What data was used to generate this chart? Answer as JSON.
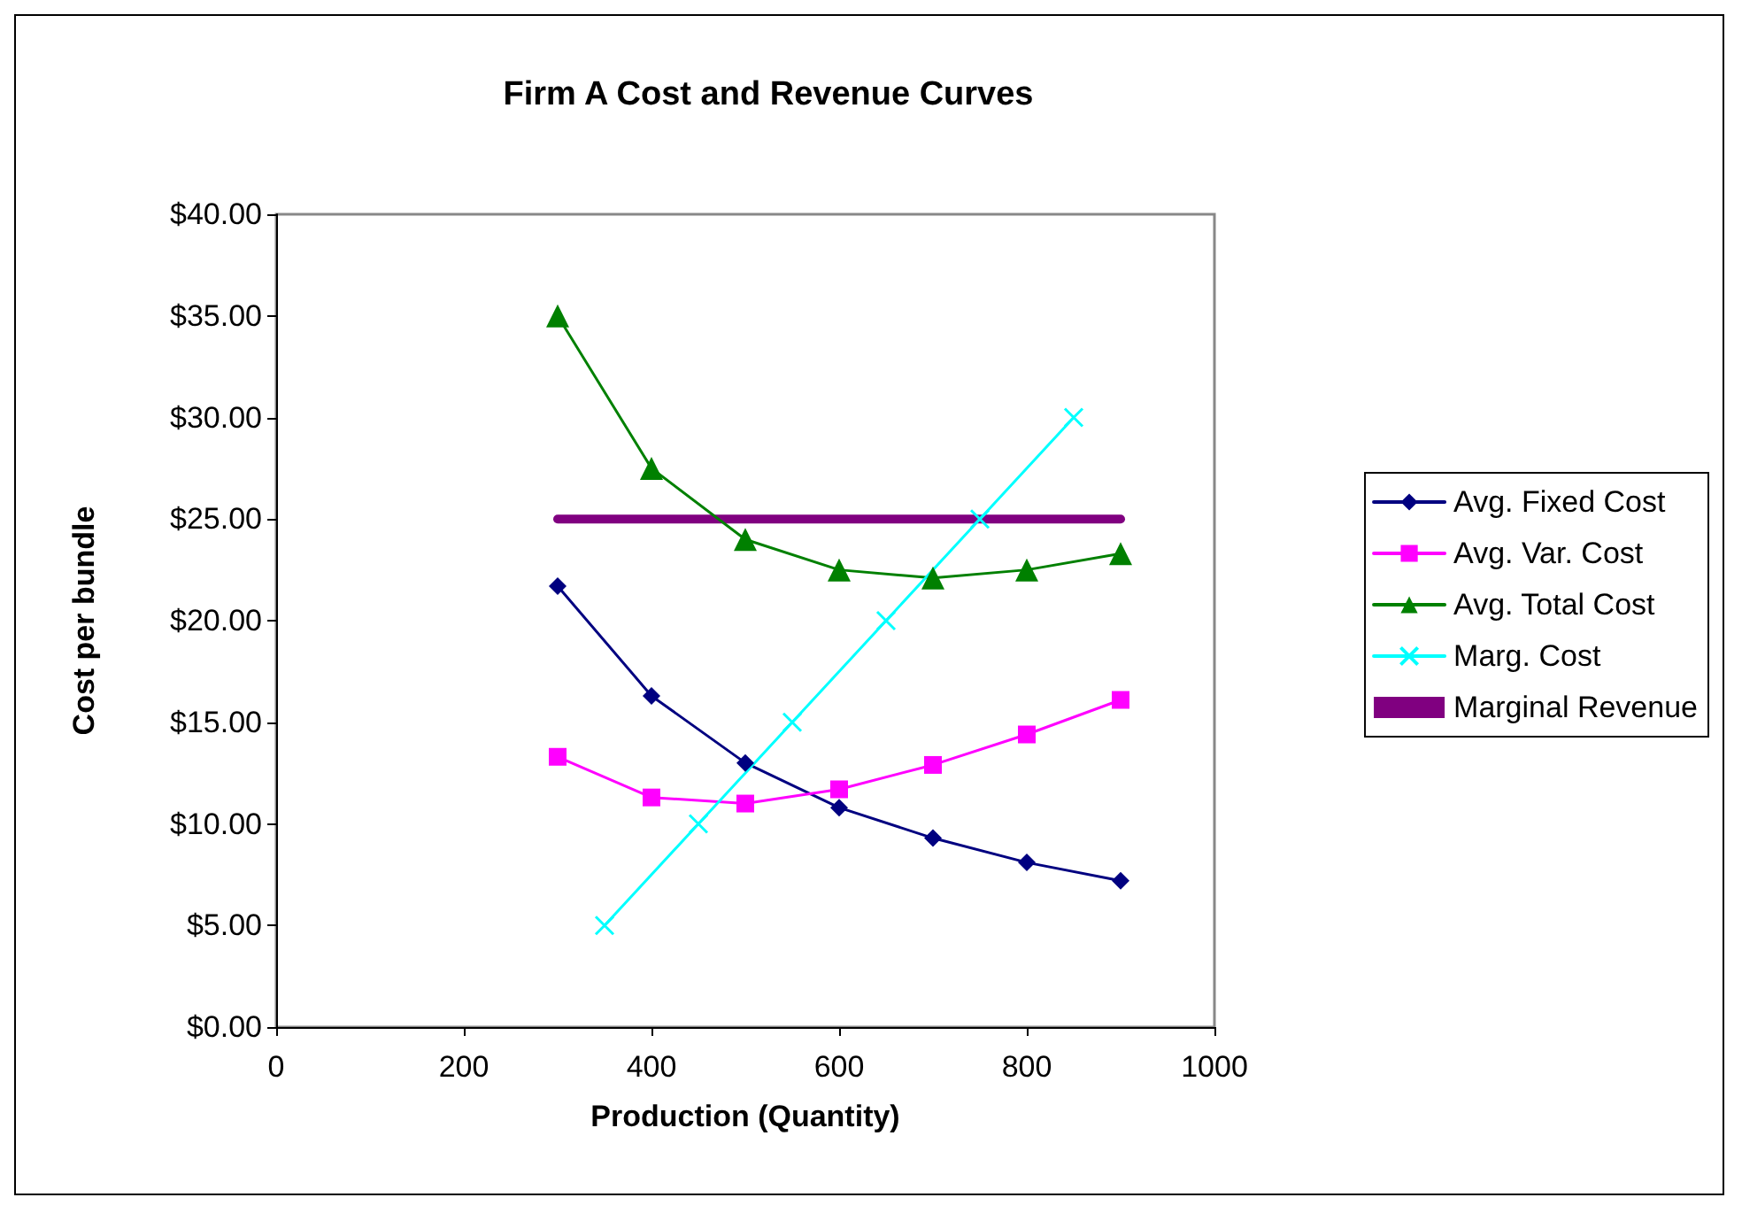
{
  "chart_data": {
    "type": "line",
    "title": "Firm A Cost and Revenue Curves",
    "xlabel": "Production (Quantity)",
    "ylabel": "Cost per bundle",
    "xlim": [
      0,
      1000
    ],
    "xticks": [
      0,
      200,
      400,
      600,
      800,
      1000
    ],
    "ylim": [
      0,
      40
    ],
    "yticks": [
      {
        "value": 0,
        "label": "$0.00"
      },
      {
        "value": 5,
        "label": "$5.00"
      },
      {
        "value": 10,
        "label": "$10.00"
      },
      {
        "value": 15,
        "label": "$15.00"
      },
      {
        "value": 20,
        "label": "$20.00"
      },
      {
        "value": 25,
        "label": "$25.00"
      },
      {
        "value": 30,
        "label": "$30.00"
      },
      {
        "value": 35,
        "label": "$35.00"
      },
      {
        "value": 40,
        "label": "$40.00"
      }
    ],
    "grid": false,
    "legend": "right",
    "line_style": "solid",
    "series": [
      {
        "name": "Avg. Fixed Cost",
        "color": "#000080",
        "marker": "diamond",
        "x": [
          300,
          400,
          500,
          600,
          700,
          800,
          900
        ],
        "values": [
          21.7,
          16.3,
          13,
          10.8,
          9.3,
          8.1,
          7.2
        ]
      },
      {
        "name": "Avg. Var. Cost",
        "color": "#ff00ff",
        "marker": "square",
        "x": [
          300,
          400,
          500,
          600,
          700,
          800,
          900
        ],
        "values": [
          13.3,
          11.3,
          11,
          11.7,
          12.9,
          14.4,
          16.1
        ]
      },
      {
        "name": "Avg. Total Cost",
        "color": "#008000",
        "marker": "triangle",
        "x": [
          300,
          400,
          500,
          600,
          700,
          800,
          900
        ],
        "values": [
          35,
          27.5,
          24,
          22.5,
          22.1,
          22.5,
          23.3
        ]
      },
      {
        "name": "Marg. Cost",
        "color": "#00ffff",
        "marker": "cross",
        "x": [
          350,
          450,
          550,
          650,
          750,
          850
        ],
        "values": [
          5,
          10,
          15,
          20,
          25,
          30
        ]
      },
      {
        "name": "Marginal Revenue",
        "color": "#800080",
        "marker": "none",
        "x": [
          300,
          400,
          500,
          600,
          700,
          800,
          900
        ],
        "values": [
          25,
          25,
          25,
          25,
          25,
          25,
          25
        ]
      }
    ]
  }
}
